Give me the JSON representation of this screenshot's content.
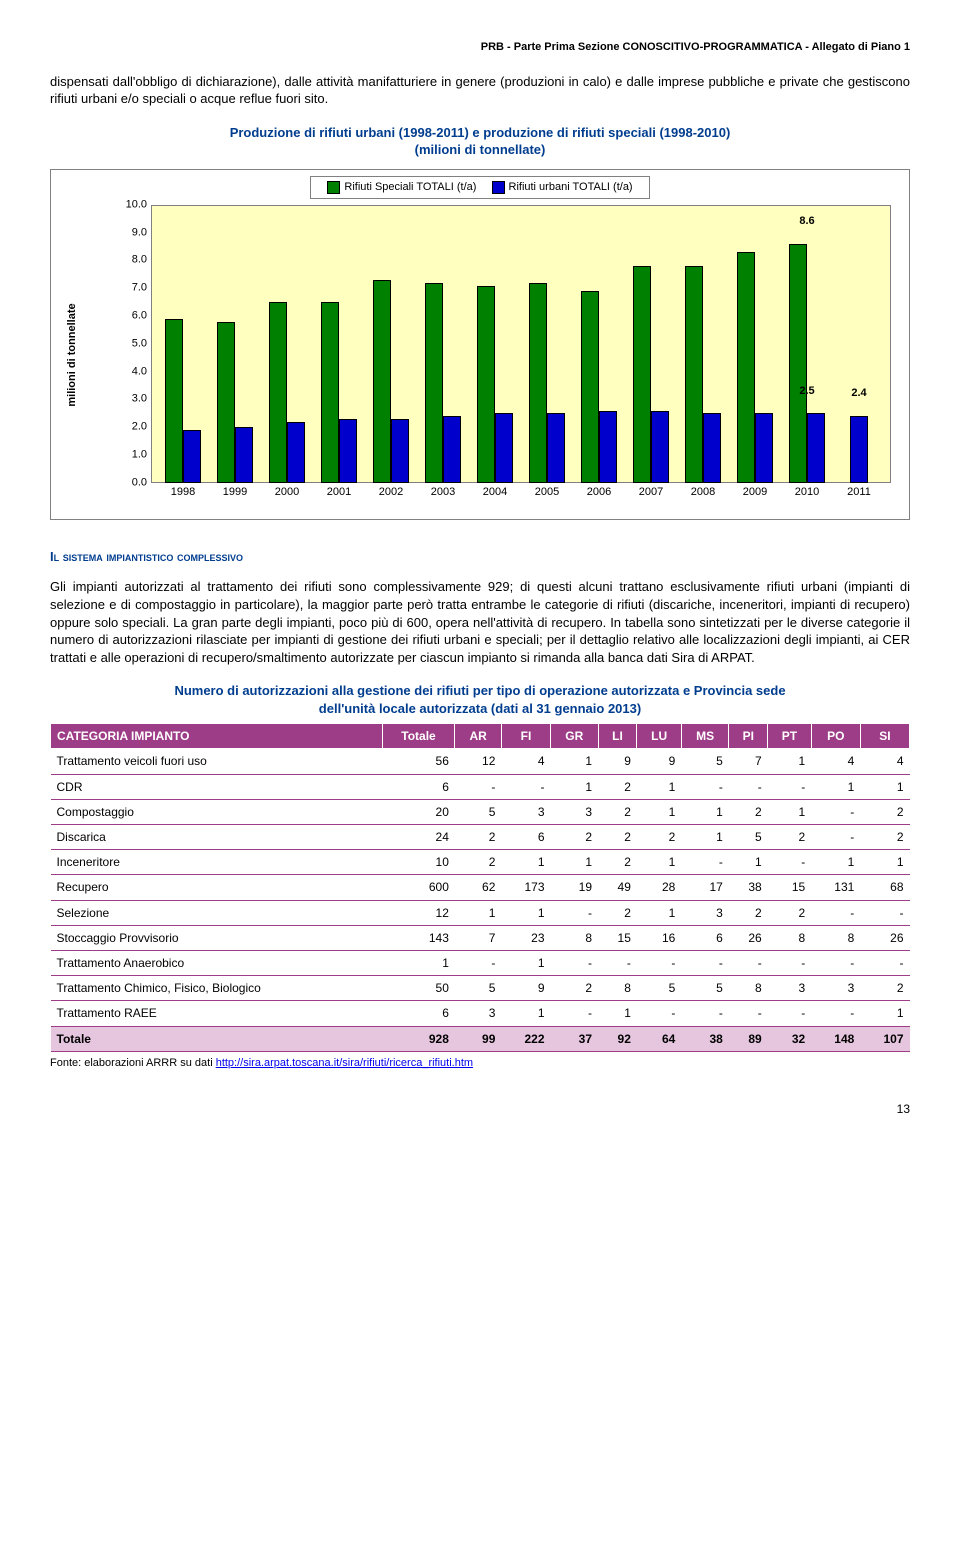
{
  "header": "PRB - Parte Prima Sezione CONOSCITIVO-PROGRAMMATICA - Allegato di Piano 1",
  "intro_para": "dispensati dall'obbligo di dichiarazione), dalle attività manifatturiere in genere (produzioni in calo) e dalle imprese pubbliche e private che gestiscono rifiuti urbani e/o speciali o acque reflue fuori sito.",
  "chart": {
    "title_line1": "Produzione di rifiuti urbani (1998-2011) e produzione di rifiuti speciali (1998-2010)",
    "title_line2": "(milioni di tonnellate)",
    "legend_series1": "Rifiuti Speciali TOTALI (t/a)",
    "legend_series2": "Rifiuti urbani TOTALI (t/a)",
    "series1_color": "#008000",
    "series2_color": "#0000cc",
    "plot_bg_color": "#ffffc0",
    "y_label": "milioni di tonnellate",
    "y_max": 10.0,
    "y_ticks": [
      "10.0",
      "9.0",
      "8.0",
      "7.0",
      "6.0",
      "5.0",
      "4.0",
      "3.0",
      "2.0",
      "1.0",
      "0.0"
    ],
    "x_labels": [
      "1998",
      "1999",
      "2000",
      "2001",
      "2002",
      "2003",
      "2004",
      "2005",
      "2006",
      "2007",
      "2008",
      "2009",
      "2010",
      "2011"
    ],
    "series1": [
      5.9,
      5.8,
      6.5,
      6.5,
      7.3,
      7.2,
      7.1,
      7.2,
      6.9,
      7.8,
      7.8,
      8.3,
      8.6,
      null
    ],
    "series2": [
      1.9,
      2.0,
      2.2,
      2.3,
      2.3,
      2.4,
      2.5,
      2.5,
      2.6,
      2.6,
      2.5,
      2.5,
      2.5,
      2.4
    ],
    "annot": [
      {
        "text": "8.6",
        "x_index": 12,
        "series": "s1"
      },
      {
        "text": "2.5",
        "x_index": 12,
        "series": "s2"
      },
      {
        "text": "2.4",
        "x_index": 13,
        "series": "s2"
      }
    ]
  },
  "section_head": "Il sistema impiantistico complessivo",
  "body_para": "Gli impianti autorizzati al trattamento dei rifiuti sono complessivamente 929; di questi alcuni trattano esclusivamente rifiuti urbani (impianti di selezione e di compostaggio in particolare), la maggior parte però tratta entrambe le categorie di rifiuti (discariche, inceneritori, impianti di recupero) oppure solo speciali. La gran parte degli impianti, poco più di 600, opera nell'attività di recupero. In tabella sono sintetizzati per le diverse categorie il numero di autorizzazioni rilasciate per impianti di gestione dei rifiuti urbani e speciali; per il dettaglio relativo alle localizzazioni degli impianti, ai CER trattati e alle operazioni di recupero/smaltimento autorizzate per ciascun impianto si rimanda alla banca dati Sira di ARPAT.",
  "table": {
    "title_line1": "Numero di autorizzazioni alla gestione dei rifiuti per tipo di operazione autorizzata e Provincia sede",
    "title_line2": "dell'unità locale autorizzata  (dati al 31 gennaio 2013)",
    "columns": [
      "CATEGORIA IMPIANTO",
      "Totale",
      "AR",
      "FI",
      "GR",
      "LI",
      "LU",
      "MS",
      "PI",
      "PT",
      "PO",
      "SI"
    ],
    "rows": [
      [
        "Trattamento veicoli fuori uso",
        "56",
        "12",
        "4",
        "1",
        "9",
        "9",
        "5",
        "7",
        "1",
        "4",
        "4"
      ],
      [
        "CDR",
        "6",
        "-",
        "-",
        "1",
        "2",
        "1",
        "-",
        "-",
        "-",
        "1",
        "1"
      ],
      [
        "Compostaggio",
        "20",
        "5",
        "3",
        "3",
        "2",
        "1",
        "1",
        "2",
        "1",
        "-",
        "2"
      ],
      [
        "Discarica",
        "24",
        "2",
        "6",
        "2",
        "2",
        "2",
        "1",
        "5",
        "2",
        "-",
        "2"
      ],
      [
        "Inceneritore",
        "10",
        "2",
        "1",
        "1",
        "2",
        "1",
        "-",
        "1",
        "-",
        "1",
        "1"
      ],
      [
        "Recupero",
        "600",
        "62",
        "173",
        "19",
        "49",
        "28",
        "17",
        "38",
        "15",
        "131",
        "68"
      ],
      [
        "Selezione",
        "12",
        "1",
        "1",
        "-",
        "2",
        "1",
        "3",
        "2",
        "2",
        "-",
        "-"
      ],
      [
        "Stoccaggio Provvisorio",
        "143",
        "7",
        "23",
        "8",
        "15",
        "16",
        "6",
        "26",
        "8",
        "8",
        "26"
      ],
      [
        "Trattamento Anaerobico",
        "1",
        "-",
        "1",
        "-",
        "-",
        "-",
        "-",
        "-",
        "-",
        "-",
        "-"
      ],
      [
        "Trattamento Chimico, Fisico, Biologico",
        "50",
        "5",
        "9",
        "2",
        "8",
        "5",
        "5",
        "8",
        "3",
        "3",
        "2"
      ],
      [
        "Trattamento RAEE",
        "6",
        "3",
        "1",
        "-",
        "1",
        "-",
        "-",
        "-",
        "-",
        "-",
        "1"
      ]
    ],
    "total_row": [
      "Totale",
      "928",
      "99",
      "222",
      "37",
      "92",
      "64",
      "38",
      "89",
      "32",
      "148",
      "107"
    ]
  },
  "source_prefix": "Fonte: elaborazioni ARRR su dati ",
  "source_link_text": "http://sira.arpat.toscana.it/sira/rifiuti/ricerca_rifiuti.htm",
  "page_number": "13"
}
